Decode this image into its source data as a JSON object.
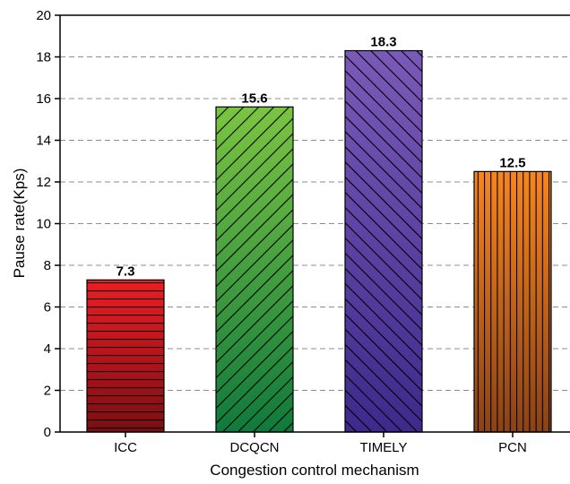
{
  "chart_data": {
    "type": "bar",
    "xlabel": "Congestion control mechanism",
    "ylabel": "Pause rate(Kps)",
    "ylim": [
      0,
      20
    ],
    "yticks": [
      0,
      2,
      4,
      6,
      8,
      10,
      12,
      14,
      16,
      18,
      20
    ],
    "grid": "horizontal dashed",
    "categories": [
      "ICC",
      "DCQCN",
      "TIMELY",
      "PCN"
    ],
    "values": [
      7.3,
      15.6,
      18.3,
      12.5
    ],
    "data_labels": [
      "7.3",
      "15.6",
      "18.3",
      "12.5"
    ],
    "bars": [
      {
        "pattern": "horizontal-lines",
        "color_top": "#ee1c24",
        "color_bottom": "#7a0e12"
      },
      {
        "pattern": "diagonal-lines-backslash",
        "color_top": "#7bc442",
        "color_bottom": "#0f7a3c"
      },
      {
        "pattern": "diagonal-lines-slash",
        "color_top": "#7a5ab8",
        "color_bottom": "#3d2a8c"
      },
      {
        "pattern": "vertical-lines",
        "color_top": "#f7861e",
        "color_bottom": "#8a4216"
      }
    ]
  }
}
